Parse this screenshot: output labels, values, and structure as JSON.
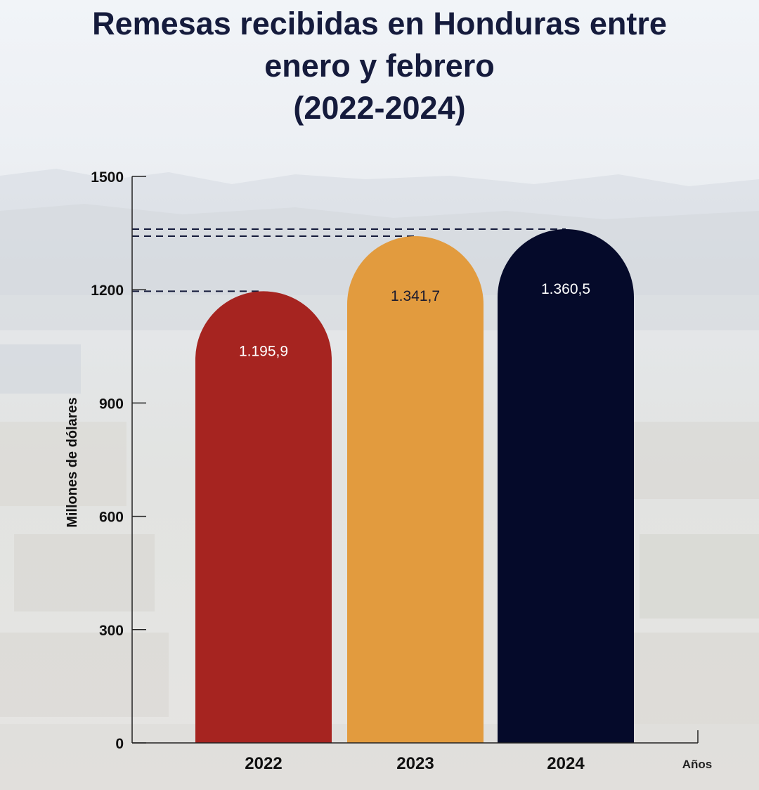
{
  "title_lines": [
    "Remesas recibidas en Honduras entre",
    "enero y febrero",
    "(2022-2024)"
  ],
  "chart_data": {
    "type": "bar",
    "title": "Remesas recibidas en Honduras entre enero y febrero (2022-2024)",
    "xlabel": "Años",
    "ylabel": "Millones de dólares",
    "categories": [
      "2022",
      "2023",
      "2024"
    ],
    "values": [
      1195.9,
      1341.7,
      1360.5
    ],
    "value_labels": [
      "1.195,9",
      "1.341,7",
      "1.360,5"
    ],
    "yticks": [
      0,
      300,
      600,
      900,
      1200,
      1500
    ],
    "ylim": [
      0,
      1500
    ],
    "colors": [
      "#a62420",
      "#e29b3e",
      "#050a2a"
    ],
    "label_colors": [
      "#ffffff",
      "#1a1a2e",
      "#ffffff"
    ],
    "reference_lines": "dashed line from y-axis to top of each bar"
  }
}
